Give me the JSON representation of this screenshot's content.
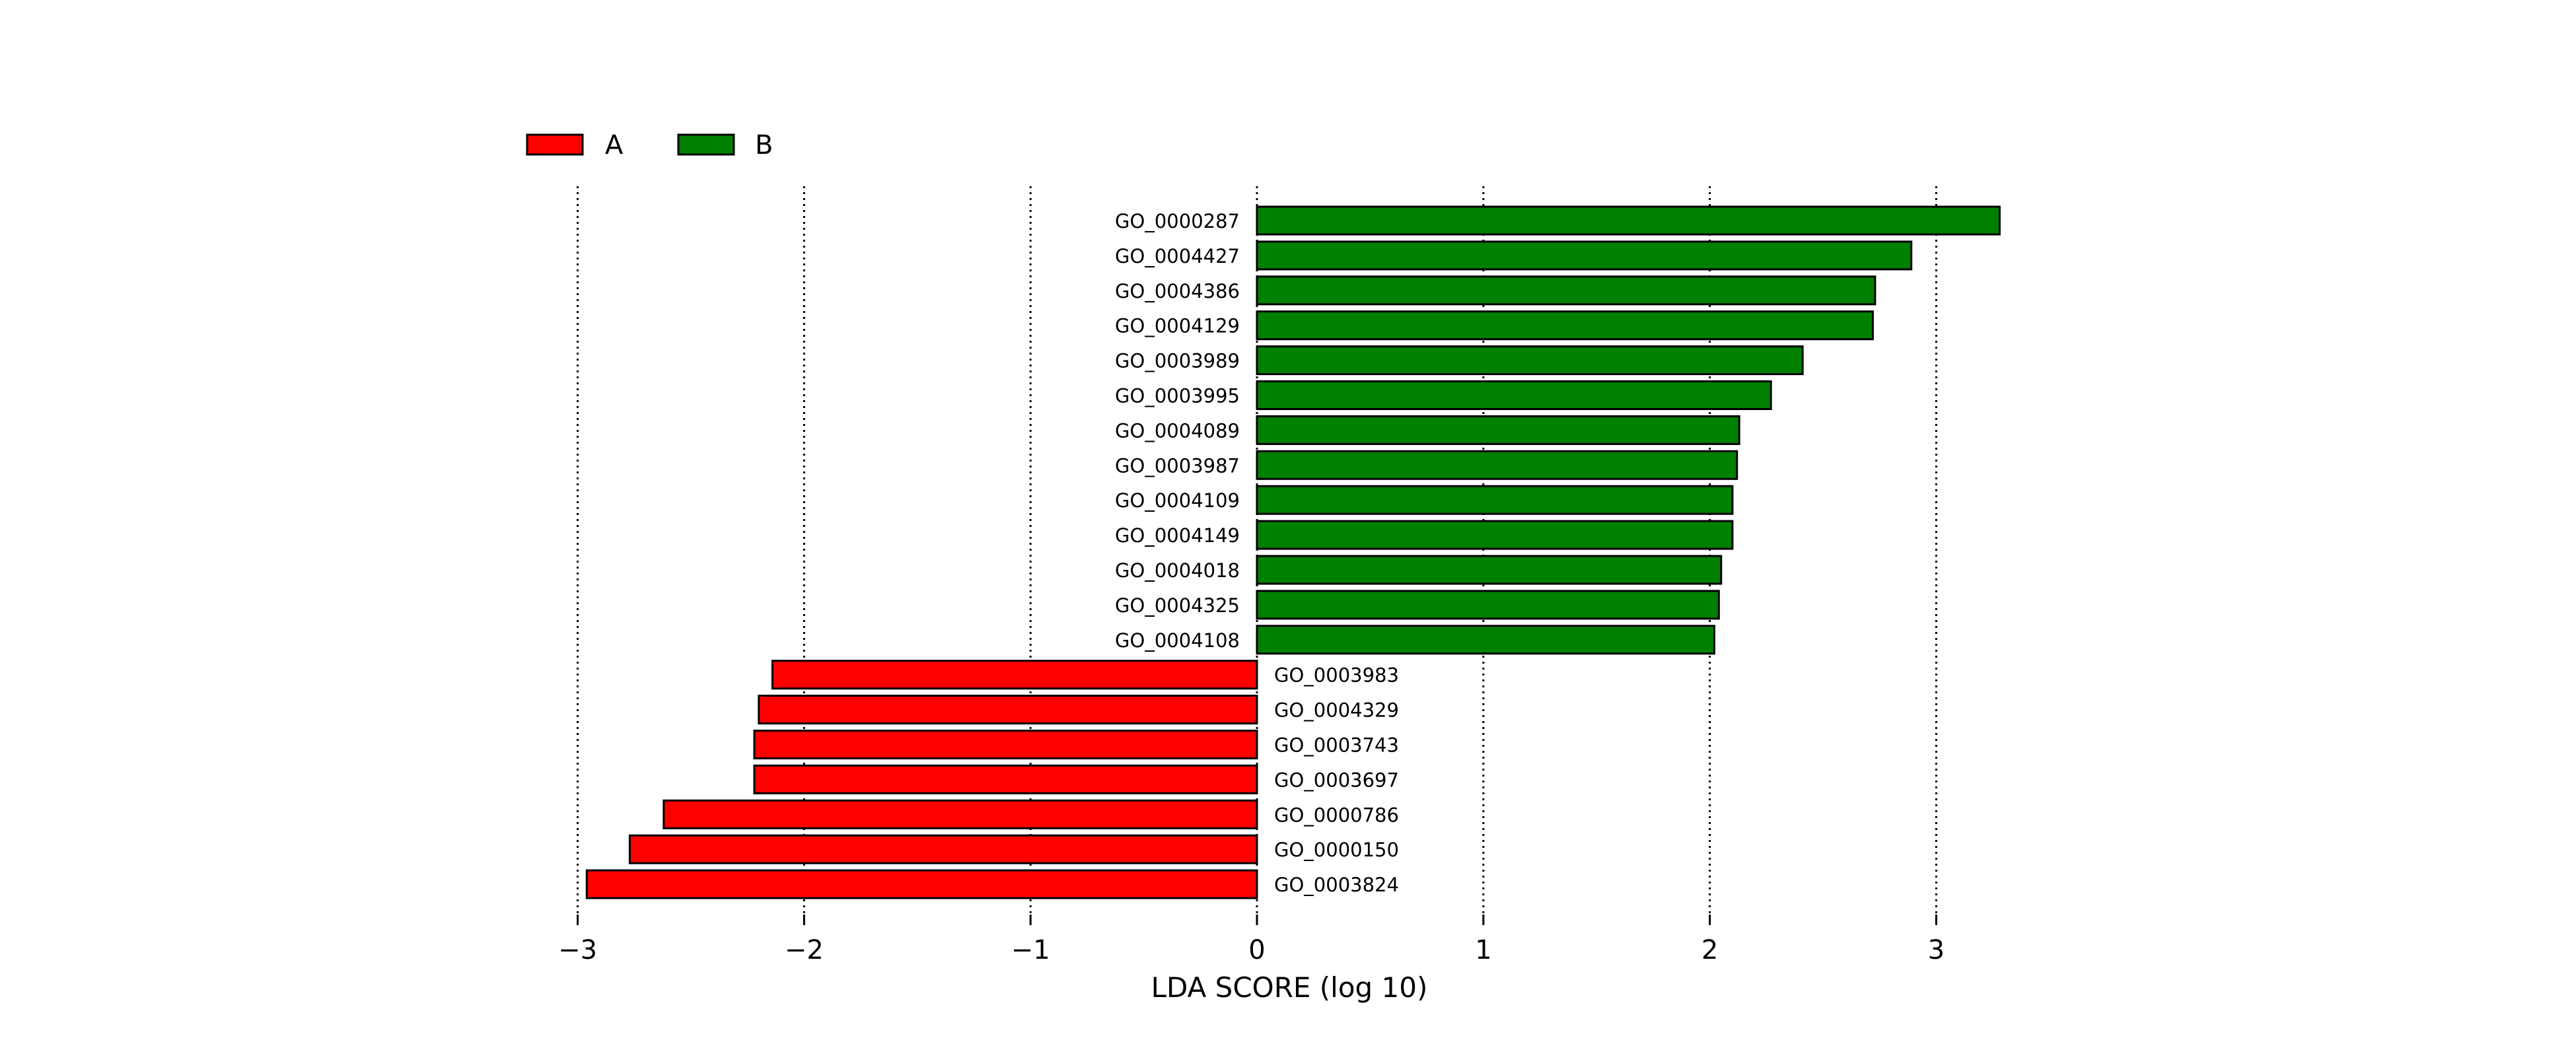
{
  "chart_data": {
    "type": "bar",
    "orientation": "horizontal",
    "xlabel": "LDA SCORE (log 10)",
    "xlim": [
      -3.1,
      3.6
    ],
    "xticks": [
      -3,
      -2,
      -1,
      0,
      1,
      2,
      3
    ],
    "xtick_labels": [
      "−3",
      "−2",
      "−1",
      "0",
      "1",
      "2",
      "3"
    ],
    "grid": "vertical-dotted",
    "legend_position": "top-left",
    "colors": {
      "A": "#ff0000",
      "B": "#008000",
      "edge": "#000000"
    },
    "legend": [
      {
        "name": "A",
        "color": "#ff0000"
      },
      {
        "name": "B",
        "color": "#008000"
      }
    ],
    "bars": [
      {
        "label": "GO_0000287",
        "value": 3.28,
        "group": "B"
      },
      {
        "label": "GO_0004427",
        "value": 2.89,
        "group": "B"
      },
      {
        "label": "GO_0004386",
        "value": 2.73,
        "group": "B"
      },
      {
        "label": "GO_0004129",
        "value": 2.72,
        "group": "B"
      },
      {
        "label": "GO_0003989",
        "value": 2.41,
        "group": "B"
      },
      {
        "label": "GO_0003995",
        "value": 2.27,
        "group": "B"
      },
      {
        "label": "GO_0004089",
        "value": 2.13,
        "group": "B"
      },
      {
        "label": "GO_0003987",
        "value": 2.12,
        "group": "B"
      },
      {
        "label": "GO_0004109",
        "value": 2.1,
        "group": "B"
      },
      {
        "label": "GO_0004149",
        "value": 2.1,
        "group": "B"
      },
      {
        "label": "GO_0004018",
        "value": 2.05,
        "group": "B"
      },
      {
        "label": "GO_0004325",
        "value": 2.04,
        "group": "B"
      },
      {
        "label": "GO_0004108",
        "value": 2.02,
        "group": "B"
      },
      {
        "label": "GO_0003983",
        "value": -2.14,
        "group": "A"
      },
      {
        "label": "GO_0004329",
        "value": -2.2,
        "group": "A"
      },
      {
        "label": "GO_0003743",
        "value": -2.22,
        "group": "A"
      },
      {
        "label": "GO_0003697",
        "value": -2.22,
        "group": "A"
      },
      {
        "label": "GO_0000786",
        "value": -2.62,
        "group": "A"
      },
      {
        "label": "GO_0000150",
        "value": -2.77,
        "group": "A"
      },
      {
        "label": "GO_0003824",
        "value": -2.96,
        "group": "A"
      }
    ]
  }
}
